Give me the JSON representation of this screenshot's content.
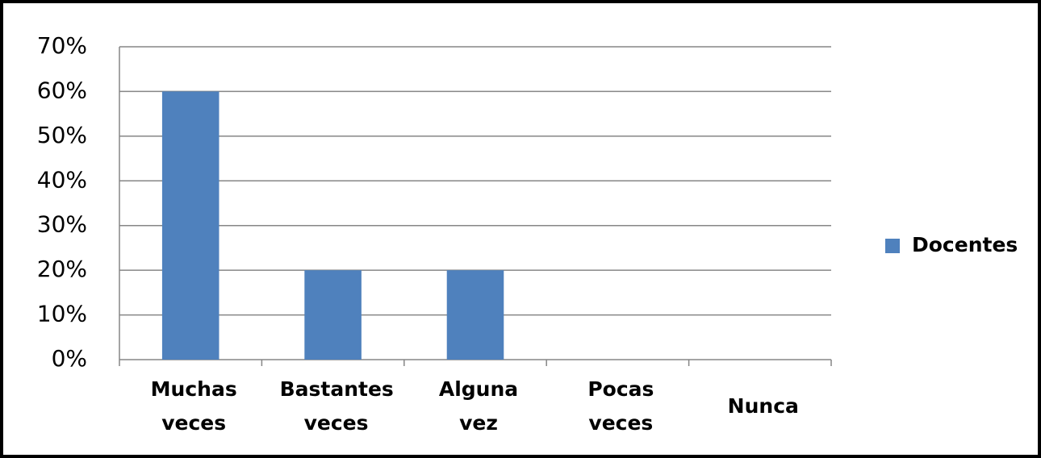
{
  "chart_data": {
    "type": "bar",
    "categories": [
      "Muchas veces",
      "Bastantes veces",
      "Alguna vez",
      "Pocas veces",
      "Nunca"
    ],
    "series": [
      {
        "name": "Docentes",
        "color": "#4f81bd",
        "values": [
          60,
          20,
          20,
          0,
          0
        ]
      }
    ],
    "ylim": [
      0,
      70
    ],
    "yticks": [
      {
        "value": 0,
        "label": "0%"
      },
      {
        "value": 10,
        "label": "10%"
      },
      {
        "value": 20,
        "label": "20%"
      },
      {
        "value": 30,
        "label": "30%"
      },
      {
        "value": 40,
        "label": "40%"
      },
      {
        "value": 50,
        "label": "50%"
      },
      {
        "value": 60,
        "label": "60%"
      },
      {
        "value": 70,
        "label": "70%"
      }
    ],
    "grid": true,
    "legend": "right"
  }
}
